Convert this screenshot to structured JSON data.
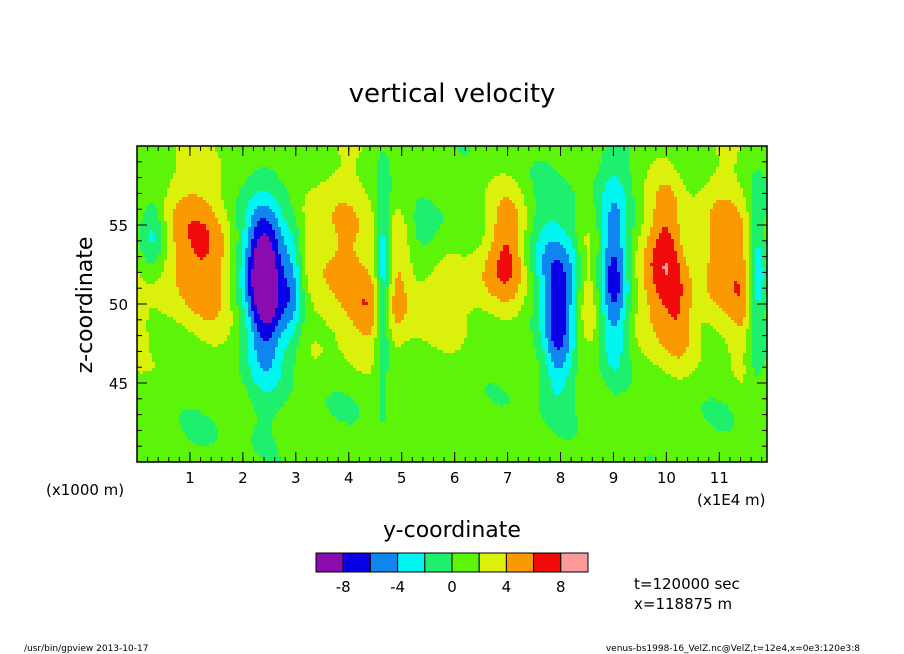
{
  "chart_data": {
    "type": "heatmap",
    "title": "vertical velocity",
    "xlabel": "y-coordinate",
    "ylabel": "z-coordinate",
    "x_unit_note": "(x1E4 m)",
    "y_unit_note": "(x1000 m)",
    "xlim": [
      0.0,
      11.9
    ],
    "ylim": [
      40.0,
      60.0
    ],
    "x_ticks": [
      1,
      2,
      3,
      4,
      5,
      6,
      7,
      8,
      9,
      10,
      11
    ],
    "y_ticks": [
      45,
      50,
      55
    ],
    "levels": [
      -10,
      -8,
      -6,
      -4,
      -2,
      0,
      2,
      4,
      6,
      8,
      10
    ],
    "colorbar_tick_labels": [
      "-8",
      "-4",
      "0",
      "4",
      "8"
    ],
    "colors": [
      "#8a0bb0",
      "#0a00e6",
      "#0f85f0",
      "#00f5f0",
      "#1ef06e",
      "#5cf50a",
      "#dbf00a",
      "#fa9a00",
      "#f00a0a",
      "#fa9a9a"
    ],
    "background_value": 1,
    "features": [
      {
        "y": 0.3,
        "z": 54.5,
        "amp": -4.5,
        "sy": 0.18,
        "sz": 1.8
      },
      {
        "y": 0.9,
        "z": 54.0,
        "amp": 4.0,
        "sy": 0.45,
        "sz": 3.5
      },
      {
        "y": 1.4,
        "z": 52.0,
        "amp": 2.5,
        "sy": 0.35,
        "sz": 3.0
      },
      {
        "y": 2.45,
        "z": 51.0,
        "amp": -10.5,
        "sy": 0.28,
        "sz": 3.8
      },
      {
        "y": 2.3,
        "z": 53.0,
        "amp": -3.0,
        "sy": 0.3,
        "sz": 2.0
      },
      {
        "y": 2.95,
        "z": 51.5,
        "amp": -5.0,
        "sy": 0.15,
        "sz": 2.8
      },
      {
        "y": 3.1,
        "z": 54.5,
        "amp": 1.5,
        "sy": 0.3,
        "sz": 2.0
      },
      {
        "y": 3.8,
        "z": 53.0,
        "amp": 3.5,
        "sy": 0.45,
        "sz": 4.0
      },
      {
        "y": 4.4,
        "z": 49.5,
        "amp": 3.0,
        "sy": 0.3,
        "sz": 2.0
      },
      {
        "y": 4.65,
        "z": 51.5,
        "amp": -6.0,
        "sy": 0.1,
        "sz": 4.5
      },
      {
        "y": 4.95,
        "z": 52.5,
        "amp": 3.5,
        "sy": 0.2,
        "sz": 3.5
      },
      {
        "y": 5.4,
        "z": 54.5,
        "amp": -2.5,
        "sy": 0.3,
        "sz": 1.5
      },
      {
        "y": 5.6,
        "z": 50.0,
        "amp": 2.0,
        "sy": 0.4,
        "sz": 2.0
      },
      {
        "y": 6.5,
        "z": 51.0,
        "amp": 2.0,
        "sy": 0.4,
        "sz": 1.5
      },
      {
        "y": 7.0,
        "z": 53.5,
        "amp": 5.0,
        "sy": 0.3,
        "sz": 2.5
      },
      {
        "y": 7.6,
        "z": 53.0,
        "amp": -3.0,
        "sy": 0.25,
        "sz": 3.0
      },
      {
        "y": 7.95,
        "z": 49.5,
        "amp": -7.5,
        "sy": 0.2,
        "sz": 3.5
      },
      {
        "y": 8.25,
        "z": 51.5,
        "amp": -3.5,
        "sy": 0.15,
        "sz": 3.0
      },
      {
        "y": 8.5,
        "z": 50.5,
        "amp": 3.0,
        "sy": 0.25,
        "sz": 3.0
      },
      {
        "y": 9.0,
        "z": 51.5,
        "amp": -8.5,
        "sy": 0.22,
        "sz": 4.0
      },
      {
        "y": 9.5,
        "z": 50.5,
        "amp": 2.5,
        "sy": 0.3,
        "sz": 3.0
      },
      {
        "y": 10.0,
        "z": 53.0,
        "amp": 5.5,
        "sy": 0.25,
        "sz": 3.5
      },
      {
        "y": 10.3,
        "z": 49.0,
        "amp": 3.0,
        "sy": 0.2,
        "sz": 2.0
      },
      {
        "y": 11.0,
        "z": 53.0,
        "amp": 4.5,
        "sy": 0.3,
        "sz": 3.5
      },
      {
        "y": 11.45,
        "z": 51.0,
        "amp": 3.0,
        "sy": 0.18,
        "sz": 3.0
      },
      {
        "y": 11.7,
        "z": 51.0,
        "amp": -5.0,
        "sy": 0.12,
        "sz": 4.0
      },
      {
        "y": 4.0,
        "z": 44.0,
        "amp": -0.8,
        "sy": 0.6,
        "sz": 1.5
      },
      {
        "y": 7.5,
        "z": 44.5,
        "amp": -0.8,
        "sy": 0.5,
        "sz": 1.5
      },
      {
        "y": 1.5,
        "z": 42.0,
        "amp": -0.8,
        "sy": 0.6,
        "sz": 1.5
      },
      {
        "y": 10.5,
        "z": 42.5,
        "amp": -0.8,
        "sy": 0.7,
        "sz": 1.5
      },
      {
        "y": 5.5,
        "z": 58.5,
        "amp": -0.8,
        "sy": 0.6,
        "sz": 1.2
      },
      {
        "y": 9.0,
        "z": 58.0,
        "amp": -0.8,
        "sy": 0.5,
        "sz": 1.2
      },
      {
        "y": 0.0,
        "z": 48.5,
        "amp": 2.5,
        "sy": 0.12,
        "sz": 1.5
      },
      {
        "y": 2.9,
        "z": 57.5,
        "amp": -0.8,
        "sy": 0.4,
        "sz": 1.0
      }
    ]
  },
  "annotations": {
    "time": "t=120000 sec",
    "position": "x=118875 m"
  },
  "footer": {
    "left": "/usr/bin/gpview   2013-10-17",
    "right": "venus-bs1998-16_VelZ.nc@VelZ,t=12e4,x=0e3:120e3:8"
  }
}
